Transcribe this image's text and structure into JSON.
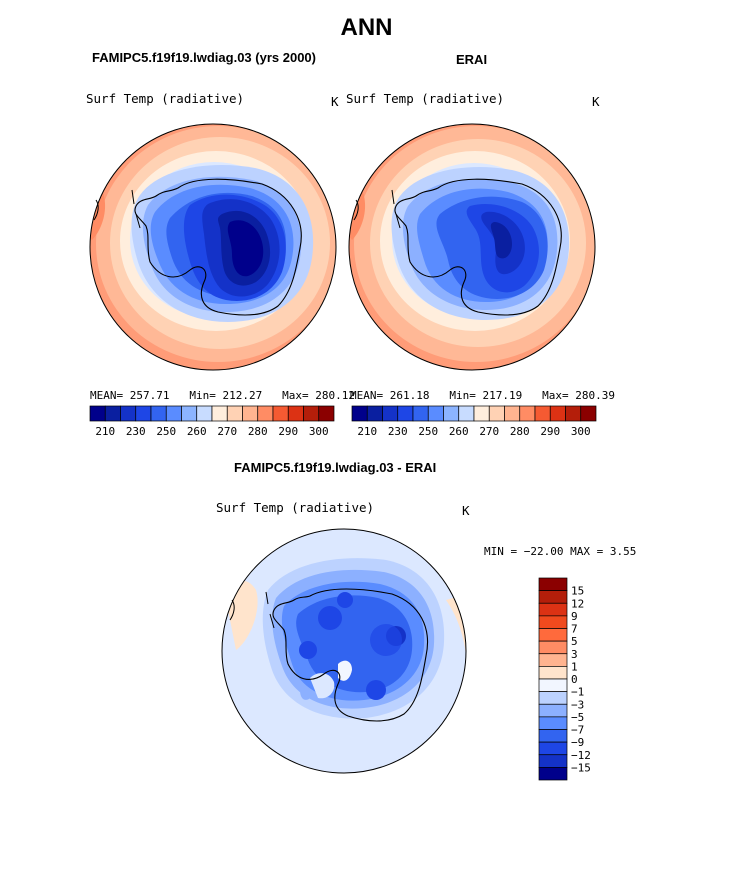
{
  "title": "ANN",
  "panels": [
    {
      "id": "model",
      "case_title": "FAMIPC5.f19f19.lwdiag.03 (yrs 2000)",
      "variable": "Surf Temp (radiative)",
      "units": "K",
      "stats": {
        "mean_label": "MEAN=",
        "mean": "257.71",
        "min_label": "Min=",
        "min": "212.27",
        "max_label": "Max=",
        "max": "280.12"
      }
    },
    {
      "id": "obs",
      "case_title": "ERAI",
      "variable": "Surf Temp (radiative)",
      "units": "K",
      "stats": {
        "mean_label": "MEAN=",
        "mean": "261.18",
        "min_label": "Min=",
        "min": "217.19",
        "max_label": "Max=",
        "max": "280.39"
      }
    },
    {
      "id": "diff",
      "case_title": "FAMIPC5.f19f19.lwdiag.03 - ERAI",
      "variable": "Surf Temp (radiative)",
      "units": "K",
      "minmax_text": "MIN = −22.00  MAX =    3.55"
    }
  ],
  "chart_data": [
    {
      "type": "heatmap",
      "projection": "south polar stereographic",
      "panel": "model",
      "title": "FAMIPC5.f19f19.lwdiag.03 (yrs 2000)",
      "variable": "Surf Temp (radiative)",
      "units": "K",
      "mean": 257.71,
      "min": 212.27,
      "max": 280.12,
      "contour_levels": [
        210,
        220,
        230,
        240,
        250,
        255,
        260,
        265,
        270,
        275,
        280,
        285,
        290,
        295,
        300
      ],
      "colorbar_ticks": [
        "210",
        "230",
        "250",
        "260",
        "270",
        "280",
        "290",
        "300"
      ],
      "colors": [
        "#00008b",
        "#0a1fa0",
        "#1432c8",
        "#1e46e6",
        "#3264f0",
        "#5a8cff",
        "#8cb4ff",
        "#c8dcff",
        "#ffeedd",
        "#ffd2b4",
        "#ffb490",
        "#ff8c64",
        "#f55a32",
        "#dc3214",
        "#b41e0a",
        "#8b0000"
      ]
    },
    {
      "type": "heatmap",
      "projection": "south polar stereographic",
      "panel": "obs",
      "title": "ERAI",
      "variable": "Surf Temp (radiative)",
      "units": "K",
      "mean": 261.18,
      "min": 217.19,
      "max": 280.39,
      "contour_levels": [
        210,
        220,
        230,
        240,
        250,
        255,
        260,
        265,
        270,
        275,
        280,
        285,
        290,
        295,
        300
      ],
      "colorbar_ticks": [
        "210",
        "230",
        "250",
        "260",
        "270",
        "280",
        "290",
        "300"
      ]
    },
    {
      "type": "heatmap",
      "projection": "south polar stereographic",
      "panel": "diff",
      "title": "FAMIPC5.f19f19.lwdiag.03 - ERAI",
      "variable": "Surf Temp (radiative)",
      "units": "K",
      "min": -22.0,
      "max": 3.55,
      "colorbar_ticks": [
        "15",
        "12",
        "9",
        "7",
        "5",
        "3",
        "1",
        "0",
        "−1",
        "−3",
        "−5",
        "−7",
        "−9",
        "−12",
        "−15"
      ],
      "colors": [
        "#8b0000",
        "#b41e0a",
        "#dc3214",
        "#f04a1e",
        "#ff6a3c",
        "#ff8c64",
        "#ffb490",
        "#ffe4cc",
        "#f2f6ff",
        "#bcd2ff",
        "#8cb0ff",
        "#5a8cff",
        "#3264f0",
        "#1e46e6",
        "#1432c8",
        "#00008b"
      ]
    }
  ]
}
